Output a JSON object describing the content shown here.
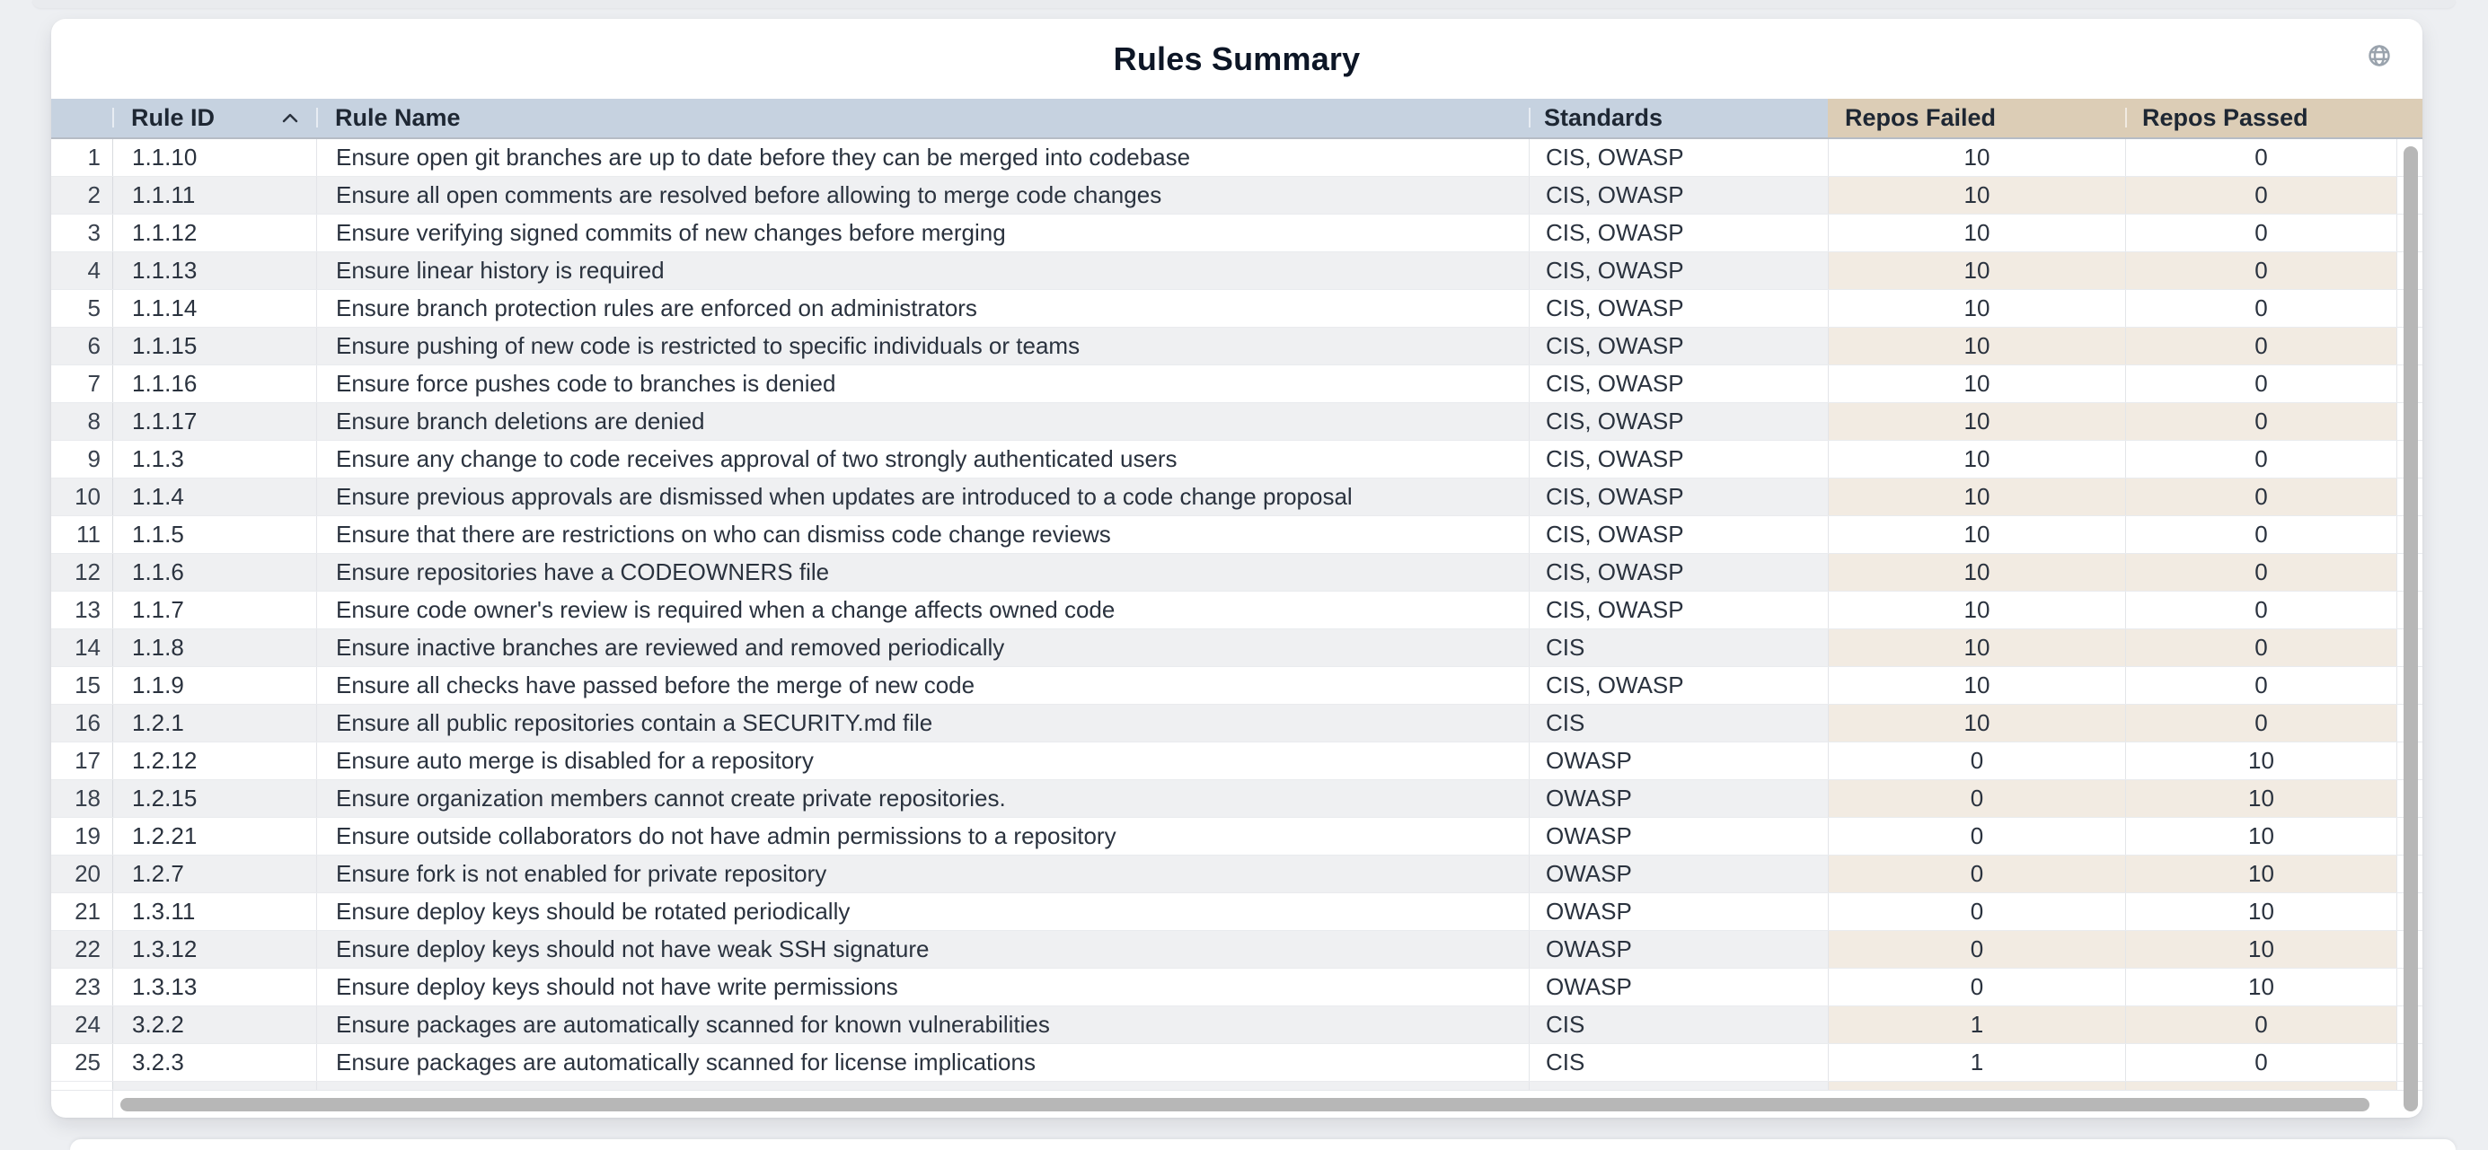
{
  "card": {
    "title": "Rules Summary"
  },
  "icons": {
    "globe": "globe-icon",
    "sort_ascending": "chevron-up-icon"
  },
  "table": {
    "columns": [
      {
        "key": "row_index",
        "label": ""
      },
      {
        "key": "rule_id",
        "label": "Rule ID",
        "sorted": "ascending"
      },
      {
        "key": "rule_name",
        "label": "Rule Name"
      },
      {
        "key": "standards",
        "label": "Standards"
      },
      {
        "key": "repos_failed",
        "label": "Repos Failed"
      },
      {
        "key": "repos_passed",
        "label": "Repos Passed"
      }
    ],
    "rows": [
      [
        1,
        "1.1.10",
        "Ensure open git branches are up to date before they can be merged into codebase",
        "CIS, OWASP",
        10,
        0
      ],
      [
        2,
        "1.1.11",
        "Ensure all open comments are resolved before allowing to merge code changes",
        "CIS, OWASP",
        10,
        0
      ],
      [
        3,
        "1.1.12",
        "Ensure verifying signed commits of new changes before merging",
        "CIS, OWASP",
        10,
        0
      ],
      [
        4,
        "1.1.13",
        "Ensure linear history is required",
        "CIS, OWASP",
        10,
        0
      ],
      [
        5,
        "1.1.14",
        "Ensure branch protection rules are enforced on administrators",
        "CIS, OWASP",
        10,
        0
      ],
      [
        6,
        "1.1.15",
        "Ensure pushing of new code is restricted to specific individuals or teams",
        "CIS, OWASP",
        10,
        0
      ],
      [
        7,
        "1.1.16",
        "Ensure force pushes code to branches is denied",
        "CIS, OWASP",
        10,
        0
      ],
      [
        8,
        "1.1.17",
        "Ensure branch deletions are denied",
        "CIS, OWASP",
        10,
        0
      ],
      [
        9,
        "1.1.3",
        "Ensure any change to code receives approval of two strongly authenticated users",
        "CIS, OWASP",
        10,
        0
      ],
      [
        10,
        "1.1.4",
        "Ensure previous approvals are dismissed when updates are introduced to a code change proposal",
        "CIS, OWASP",
        10,
        0
      ],
      [
        11,
        "1.1.5",
        "Ensure that there are restrictions on who can dismiss code change reviews",
        "CIS, OWASP",
        10,
        0
      ],
      [
        12,
        "1.1.6",
        "Ensure repositories have a CODEOWNERS file",
        "CIS, OWASP",
        10,
        0
      ],
      [
        13,
        "1.1.7",
        "Ensure code owner's review is required when a change affects owned code",
        "CIS, OWASP",
        10,
        0
      ],
      [
        14,
        "1.1.8",
        "Ensure inactive branches are reviewed and removed periodically",
        "CIS",
        10,
        0
      ],
      [
        15,
        "1.1.9",
        "Ensure all checks have passed before the merge of new code",
        "CIS, OWASP",
        10,
        0
      ],
      [
        16,
        "1.2.1",
        "Ensure all public repositories contain a SECURITY.md file",
        "CIS",
        10,
        0
      ],
      [
        17,
        "1.2.12",
        "Ensure auto merge is disabled for a repository",
        "OWASP",
        0,
        10
      ],
      [
        18,
        "1.2.15",
        "Ensure organization members cannot create private repositories.",
        "OWASP",
        0,
        10
      ],
      [
        19,
        "1.2.21",
        "Ensure outside collaborators do not have admin permissions to a repository",
        "OWASP",
        0,
        10
      ],
      [
        20,
        "1.2.7",
        "Ensure fork is not enabled for private repository",
        "OWASP",
        0,
        10
      ],
      [
        21,
        "1.3.11",
        "Ensure deploy keys should be rotated periodically",
        "OWASP",
        0,
        10
      ],
      [
        22,
        "1.3.12",
        "Ensure deploy keys should not have weak SSH signature",
        "OWASP",
        0,
        10
      ],
      [
        23,
        "1.3.13",
        "Ensure deploy keys should not have write permissions",
        "OWASP",
        0,
        10
      ],
      [
        24,
        "3.2.2",
        "Ensure packages are automatically scanned for known vulnerabilities",
        "CIS",
        1,
        0
      ],
      [
        25,
        "3.2.3",
        "Ensure packages are automatically scanned for license implications",
        "CIS",
        1,
        0
      ]
    ]
  },
  "colors": {
    "header_blue": "#c6d2e0",
    "header_tan": "#dccdb6",
    "alt_row_gray": "#eff0f2",
    "alt_row_tan": "#f2ebe2",
    "text": "#2a323e",
    "title": "#0d1626",
    "scrollbar": "#b7b7b7",
    "page_background": "#edeff2"
  }
}
